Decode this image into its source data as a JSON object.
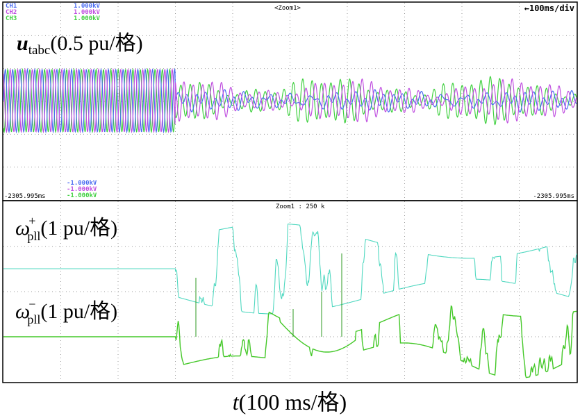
{
  "header": {
    "channels": [
      {
        "name": "CH1",
        "scale": "1.000kV",
        "color": "#4a6cf0"
      },
      {
        "name": "CH2",
        "scale": "1.000kV",
        "color": "#c050e0"
      },
      {
        "name": "CH3",
        "scale": "1.000kV",
        "color": "#40d040"
      }
    ],
    "zoom_title": "<Zoom1>",
    "timebase": "←100ms/div",
    "neg_scales": [
      "-1.000kV",
      "-1.000kV",
      "-1.000kV"
    ],
    "left_time": "-2305.995ms",
    "right_time": "-2305.995ms",
    "zoom2_label": "Zoom1 : 250 k"
  },
  "labels": {
    "u_main": "u",
    "u_sub": "tabc",
    "u_scale": "(0.5 pu/格)",
    "wp_main": "ω",
    "wp_sup": "+",
    "wp_sub": "pll",
    "wp_scale": "(1 pu/格)",
    "wn_main": "ω",
    "wn_sup": "−",
    "wn_sub": "pll",
    "wn_scale": "(1 pu/格)",
    "x_main": "t",
    "x_scale": "(100 ms/格)"
  },
  "chart_data": [
    {
      "type": "line",
      "panel": "top",
      "grid": true,
      "x_divisions": 10,
      "y_divisions": 6,
      "time_per_div_ms": 100,
      "event_time_ms": 300,
      "series": [
        {
          "name": "CH1",
          "color": "#4a6cf0",
          "amplitude_before": 1.0,
          "amplitude_after": 0.2
        },
        {
          "name": "CH2",
          "color": "#c050e0",
          "amplitude_before": 1.0,
          "amplitude_after": 0.55
        },
        {
          "name": "CH3",
          "color": "#40d040",
          "amplitude_before": 1.0,
          "amplitude_after": 0.6
        }
      ]
    },
    {
      "type": "line",
      "panel": "bottom",
      "grid": true,
      "x_divisions": 10,
      "y_divisions": 4,
      "time_per_div_ms": 100,
      "event_time_ms": 300,
      "series": [
        {
          "name": "omega_pll_plus",
          "color": "#50d8c0",
          "level_before": 1.0,
          "deviation_after": 0.6
        },
        {
          "name": "omega_pll_minus",
          "color": "#44c828",
          "level_before": 0.0,
          "deviation_after": 0.5
        }
      ]
    }
  ]
}
